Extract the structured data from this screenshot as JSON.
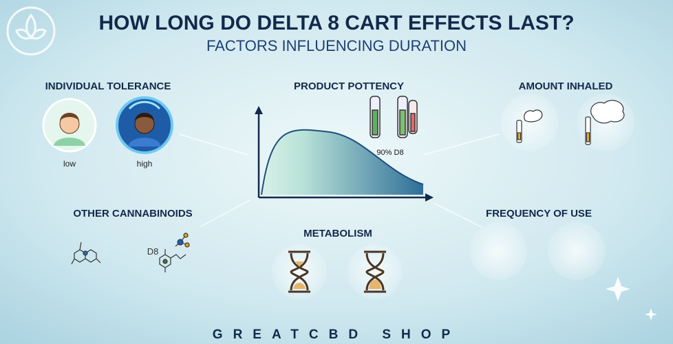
{
  "header": {
    "title": "HOW LONG DO DELTA 8 CART EFFECTS LAST?",
    "subtitle": "FACTORS INFLUENCING DURATION"
  },
  "factors": [
    {
      "label": "INDIVIDUAL TOLERANCE"
    },
    {
      "label": "PRODUCT POTTENCY"
    },
    {
      "label": "AMOUNT INHALED"
    },
    {
      "label": "OTHER CANNABINOIDS"
    },
    {
      "label": "METABOLISM"
    },
    {
      "label": "FREQUENCY OF USE"
    }
  ],
  "tolerance": {
    "levels": [
      "low",
      "high"
    ]
  },
  "potency": {
    "label": "90% D8"
  },
  "cannabinoids": {
    "molecule_label": "D8"
  },
  "footer": {
    "brand": "GREATCBD SHOP"
  }
}
